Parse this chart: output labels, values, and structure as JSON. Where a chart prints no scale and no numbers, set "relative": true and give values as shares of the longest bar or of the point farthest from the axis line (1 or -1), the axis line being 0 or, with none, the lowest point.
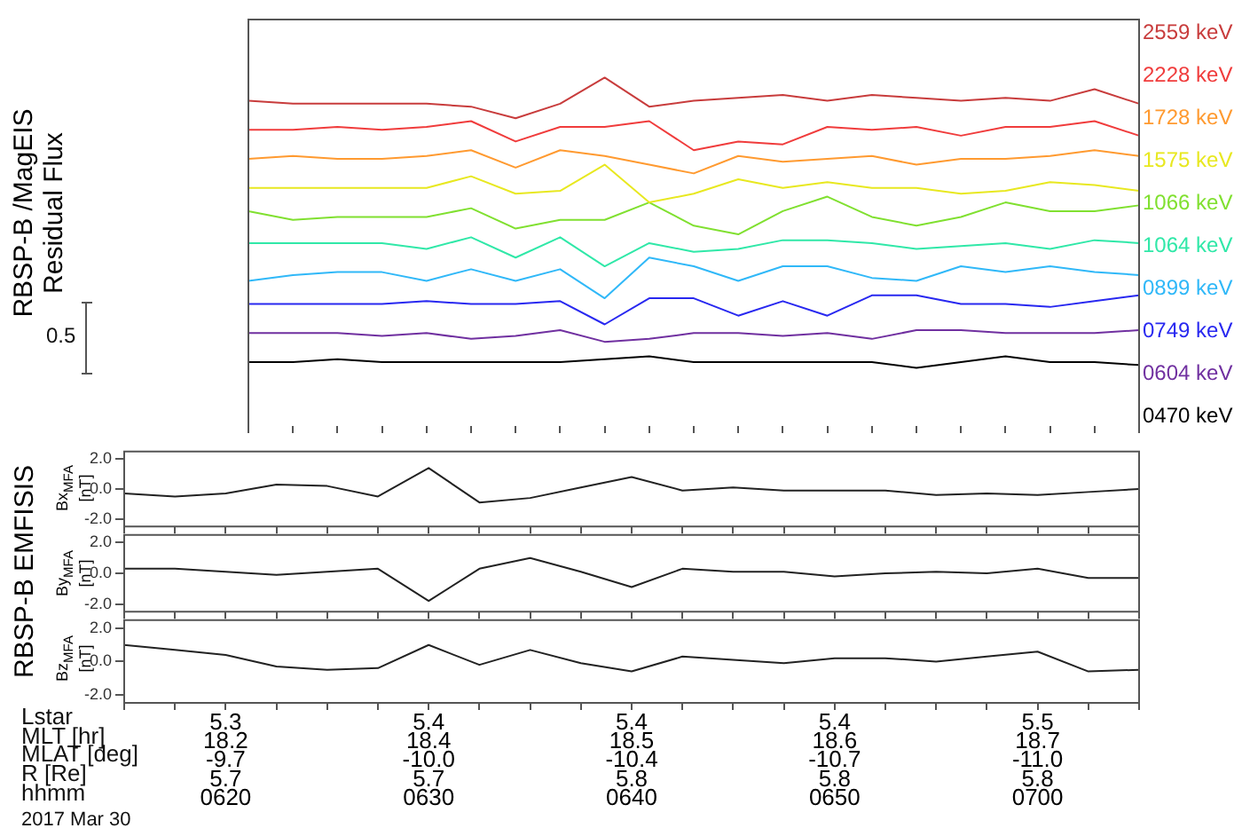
{
  "chart_data": [
    {
      "type": "line",
      "ylabel": "RBSP-B /MagEIS\nResidual Flux",
      "relative": true,
      "legend": "right",
      "tick_labels": false,
      "annotations": [
        "0.5"
      ],
      "categories": [
        null,
        null,
        null,
        null,
        null,
        null,
        null,
        null,
        null,
        null,
        null,
        null,
        null,
        null,
        null,
        null,
        null,
        null,
        null,
        null,
        null
      ],
      "series": [
        {
          "name": "2559 keV",
          "color": "#c83c3c",
          "values": [
            0.92,
            0.91,
            0.91,
            0.91,
            0.91,
            0.9,
            0.86,
            0.91,
            1.0,
            0.9,
            0.92,
            0.93,
            0.94,
            0.92,
            0.94,
            0.93,
            0.92,
            0.93,
            0.92,
            0.96,
            0.91
          ]
        },
        {
          "name": "2228 keV",
          "color": "#f03c3c",
          "values": [
            0.82,
            0.82,
            0.83,
            0.82,
            0.83,
            0.85,
            0.78,
            0.83,
            0.83,
            0.85,
            0.75,
            0.78,
            0.77,
            0.83,
            0.82,
            0.83,
            0.8,
            0.83,
            0.83,
            0.85,
            0.8
          ]
        },
        {
          "name": "1728 keV",
          "color": "#ff9a30",
          "values": [
            0.72,
            0.73,
            0.72,
            0.72,
            0.73,
            0.75,
            0.69,
            0.75,
            0.73,
            0.7,
            0.67,
            0.73,
            0.71,
            0.72,
            0.73,
            0.7,
            0.72,
            0.72,
            0.73,
            0.75,
            0.73
          ]
        },
        {
          "name": "1575 keV",
          "color": "#e8e820",
          "values": [
            0.62,
            0.62,
            0.62,
            0.62,
            0.62,
            0.66,
            0.6,
            0.61,
            0.7,
            0.57,
            0.6,
            0.65,
            0.62,
            0.64,
            0.62,
            0.62,
            0.6,
            0.61,
            0.64,
            0.63,
            0.61
          ]
        },
        {
          "name": "1066 keV",
          "color": "#80e030",
          "values": [
            0.54,
            0.51,
            0.52,
            0.52,
            0.52,
            0.55,
            0.48,
            0.51,
            0.51,
            0.57,
            0.49,
            0.46,
            0.54,
            0.59,
            0.52,
            0.49,
            0.52,
            0.57,
            0.54,
            0.54,
            0.56
          ]
        },
        {
          "name": "1064 keV",
          "color": "#30e8a8",
          "values": [
            0.43,
            0.43,
            0.43,
            0.43,
            0.41,
            0.45,
            0.38,
            0.45,
            0.35,
            0.43,
            0.4,
            0.41,
            0.44,
            0.44,
            0.43,
            0.41,
            0.42,
            0.43,
            0.41,
            0.44,
            0.43
          ]
        },
        {
          "name": "0899 keV",
          "color": "#30b8f8",
          "values": [
            0.3,
            0.32,
            0.33,
            0.33,
            0.3,
            0.34,
            0.3,
            0.34,
            0.24,
            0.38,
            0.35,
            0.3,
            0.35,
            0.35,
            0.31,
            0.3,
            0.35,
            0.33,
            0.35,
            0.33,
            0.32
          ]
        },
        {
          "name": "0749 keV",
          "color": "#2828f0",
          "values": [
            0.22,
            0.22,
            0.22,
            0.22,
            0.23,
            0.22,
            0.22,
            0.23,
            0.15,
            0.24,
            0.24,
            0.18,
            0.23,
            0.18,
            0.25,
            0.25,
            0.22,
            0.22,
            0.21,
            0.23,
            0.25
          ]
        },
        {
          "name": "0604 keV",
          "color": "#7030a0",
          "values": [
            0.12,
            0.12,
            0.12,
            0.11,
            0.12,
            0.1,
            0.11,
            0.13,
            0.09,
            0.1,
            0.12,
            0.12,
            0.11,
            0.12,
            0.1,
            0.13,
            0.13,
            0.12,
            0.12,
            0.12,
            0.13
          ]
        },
        {
          "name": "0470 keV",
          "color": "#000000",
          "values": [
            0.02,
            0.02,
            0.03,
            0.02,
            0.02,
            0.02,
            0.02,
            0.02,
            0.03,
            0.04,
            0.02,
            0.02,
            0.02,
            0.02,
            0.02,
            0,
            0.02,
            0.04,
            0.02,
            0.02,
            0.01
          ]
        }
      ]
    },
    {
      "type": "line",
      "ylabel": "Bx$_{MFA}$\n[nT]",
      "tick_labels": "y",
      "categories": [
        null,
        null,
        null,
        null,
        null,
        null,
        null,
        null,
        null,
        null,
        null,
        null,
        null,
        null,
        null,
        null,
        null,
        null,
        null,
        null,
        null
      ],
      "ylim": [
        -2.5,
        2.5
      ],
      "yticks": [
        {
          "value": -2,
          "label": "-2.0"
        },
        {
          "value": 0,
          "label": "0.0"
        },
        {
          "value": 2,
          "label": "2.0"
        }
      ],
      "series": [
        {
          "color": "#222222",
          "values": [
            -0.3,
            -0.5,
            -0.3,
            0.3,
            0.2,
            -0.5,
            1.4,
            -0.9,
            -0.6,
            0.1,
            0.8,
            -0.1,
            0.1,
            -0.1,
            -0.1,
            -0.1,
            -0.4,
            -0.3,
            -0.4,
            -0.2,
            0
          ]
        }
      ]
    },
    {
      "type": "line",
      "ylabel": "By$_{MFA}$\n[nT]",
      "tick_labels": "y",
      "annotations": [
        "RBSP-B EMFISIS"
      ],
      "categories": [
        null,
        null,
        null,
        null,
        null,
        null,
        null,
        null,
        null,
        null,
        null,
        null,
        null,
        null,
        null,
        null,
        null,
        null,
        null,
        null,
        null
      ],
      "ylim": [
        -2.5,
        2.5
      ],
      "yticks": [
        {
          "value": -2,
          "label": "-2.0"
        },
        {
          "value": 0,
          "label": "0.0"
        },
        {
          "value": 2,
          "label": "2.0"
        }
      ],
      "series": [
        {
          "color": "#222222",
          "values": [
            0.3,
            0.3,
            0.1,
            -0.1,
            0.1,
            0.3,
            -1.8,
            0.3,
            1.0,
            0.1,
            -0.9,
            0.3,
            0.1,
            0.1,
            -0.2,
            0,
            0.1,
            0,
            0.3,
            -0.3,
            -0.3
          ]
        }
      ]
    },
    {
      "type": "line",
      "ylabel": "Bz$_{MFA}$\n[nT]",
      "annotations": [
        "Lstar\nMLT [hr]\nMLAT [deg]\nR [Re]\nhhmm",
        "2017 Mar 30"
      ],
      "categories": [
        null,
        null,
        "5.3\n18.2\n-9.7\n5.7\n0620",
        null,
        null,
        null,
        "5.4\n18.4\n-10.0\n5.7\n0630",
        null,
        null,
        null,
        "5.4\n18.5\n-10.4\n5.8\n0640",
        null,
        null,
        null,
        "5.4\n18.6\n-10.7\n5.8\n0650",
        null,
        null,
        null,
        "5.5\n18.7\n-11.0\n5.8\n0700",
        null,
        null
      ],
      "ylim": [
        -2.5,
        2.5
      ],
      "yticks": [
        {
          "value": -2,
          "label": "-2.0"
        },
        {
          "value": 0,
          "label": "0.0"
        },
        {
          "value": 2,
          "label": "2.0"
        }
      ],
      "series": [
        {
          "color": "#222222",
          "values": [
            1.0,
            0.7,
            0.4,
            -0.3,
            -0.5,
            -0.4,
            1.0,
            -0.2,
            0.7,
            -0.1,
            -0.6,
            0.3,
            0.1,
            -0.1,
            0.2,
            0.2,
            0,
            0.3,
            0.6,
            -0.6,
            -0.5
          ]
        }
      ]
    }
  ]
}
